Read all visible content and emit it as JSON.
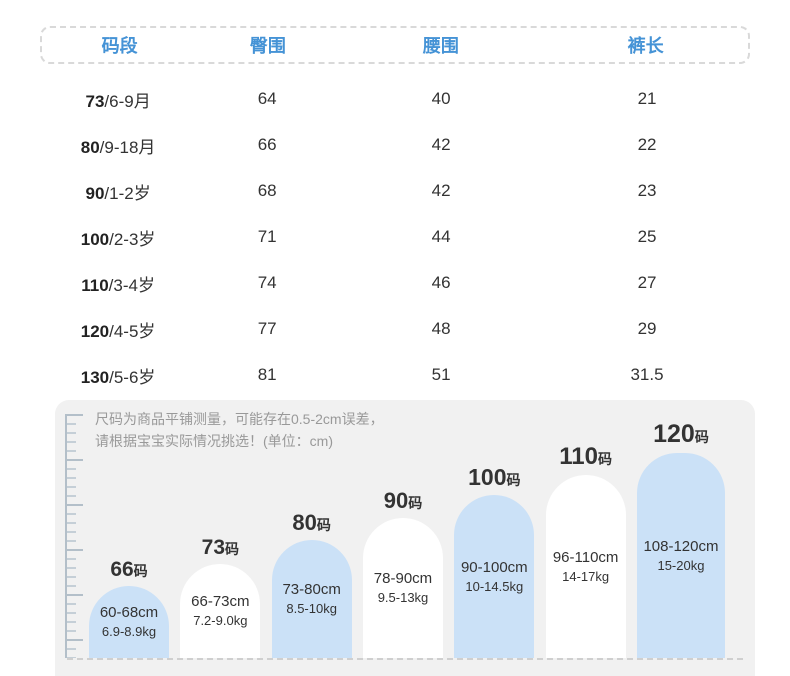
{
  "table": {
    "headers": [
      {
        "label": "码段"
      },
      {
        "label": "臀围"
      },
      {
        "label": "腰围"
      },
      {
        "label": "裤长"
      }
    ],
    "rows": [
      {
        "code": "73",
        "age": "/6-9月",
        "hip": "64",
        "waist": "40",
        "length": "21"
      },
      {
        "code": "80",
        "age": "/9-18月",
        "hip": "66",
        "waist": "42",
        "length": "22"
      },
      {
        "code": "90",
        "age": "/1-2岁",
        "hip": "68",
        "waist": "42",
        "length": "23"
      },
      {
        "code": "100",
        "age": "/2-3岁",
        "hip": "71",
        "waist": "44",
        "length": "25"
      },
      {
        "code": "110",
        "age": "/3-4岁",
        "hip": "74",
        "waist": "46",
        "length": "27"
      },
      {
        "code": "120",
        "age": "/4-5岁",
        "hip": "77",
        "waist": "48",
        "length": "29"
      },
      {
        "code": "130",
        "age": "/5-6岁",
        "hip": "81",
        "waist": "51",
        "length": "31.5"
      }
    ]
  },
  "note": {
    "line1": "尺码为商品平铺测量，可能存在0.5-2cm误差，",
    "line2": "请根据宝宝实际情况挑选！(单位：cm)"
  },
  "size_chart": {
    "bars": [
      {
        "size": "66",
        "suffix": "码",
        "height_range": "60-68cm",
        "weight_range": "6.9-8.9kg"
      },
      {
        "size": "73",
        "suffix": "码",
        "height_range": "66-73cm",
        "weight_range": "7.2-9.0kg"
      },
      {
        "size": "80",
        "suffix": "码",
        "height_range": "73-80cm",
        "weight_range": "8.5-10kg"
      },
      {
        "size": "90",
        "suffix": "码",
        "height_range": "78-90cm",
        "weight_range": "9.5-13kg"
      },
      {
        "size": "100",
        "suffix": "码",
        "height_range": "90-100cm",
        "weight_range": "10-14.5kg"
      },
      {
        "size": "110",
        "suffix": "码",
        "height_range": "96-110cm",
        "weight_range": "14-17kg"
      },
      {
        "size": "120",
        "suffix": "码",
        "height_range": "108-120cm",
        "weight_range": "15-20kg"
      }
    ]
  },
  "chart_data": [
    {
      "type": "table",
      "columns": [
        "码段",
        "臀围",
        "腰围",
        "裤长"
      ],
      "rows": [
        [
          "73/6-9月",
          64,
          40,
          21
        ],
        [
          "80/9-18月",
          66,
          42,
          22
        ],
        [
          "90/1-2岁",
          68,
          42,
          23
        ],
        [
          "100/2-3岁",
          71,
          44,
          25
        ],
        [
          "110/3-4岁",
          74,
          46,
          27
        ],
        [
          "120/4-5岁",
          77,
          48,
          29
        ],
        [
          "130/5-6岁",
          81,
          51,
          31.5
        ]
      ],
      "unit": "cm"
    },
    {
      "type": "bar",
      "categories": [
        "66码",
        "73码",
        "80码",
        "90码",
        "100码",
        "110码",
        "120码"
      ],
      "height_ranges_cm": [
        "60-68",
        "66-73",
        "73-80",
        "78-90",
        "90-100",
        "96-110",
        "108-120"
      ],
      "weight_ranges_kg": [
        "6.9-8.9",
        "7.2-9.0",
        "8.5-10",
        "9.5-13",
        "10-14.5",
        "14-17",
        "15-20"
      ],
      "layout": "ascending rounded bars, alternating blue/white, baseline dashed"
    }
  ],
  "colors": {
    "header_blue": "#4593d6",
    "bar_blue": "#cbe1f7",
    "bar_white": "#ffffff",
    "panel_gray": "#f1f1f1"
  }
}
